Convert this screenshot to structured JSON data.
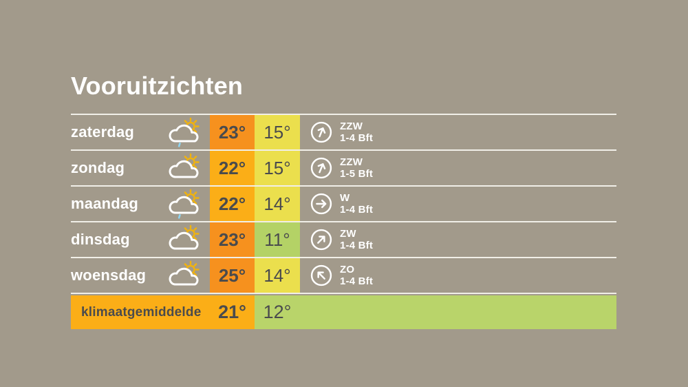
{
  "title": "Vooruitzichten",
  "colors": {
    "background": "#a29a8b",
    "separator_line": "#f1efe8",
    "hot_orange": "#f6911e",
    "warm_amber": "#fbae17",
    "mild_yellow": "#ebdf4d",
    "cool_green": "#b4d266",
    "climate_orange": "#fbae17",
    "climate_green": "#b9d46a",
    "temp_text": "#4a4b4d",
    "white_text": "#ffffff",
    "sun_yellow": "#f2b30c",
    "raindrop_blue": "#8ed4f1"
  },
  "forecast": {
    "rows": [
      {
        "day": "zaterdag",
        "icon": "partly-cloudy-drizzle-icon",
        "max": "23°",
        "min": "15°",
        "max_bg": "#f6911e",
        "min_bg": "#ebdf4d",
        "wind_dir": "ZZW",
        "wind_force": "1-4 Bft",
        "arrow_deg": 22.5
      },
      {
        "day": "zondag",
        "icon": "partly-cloudy-icon",
        "max": "22°",
        "min": "15°",
        "max_bg": "#fbae17",
        "min_bg": "#ebdf4d",
        "wind_dir": "ZZW",
        "wind_force": "1-5 Bft",
        "arrow_deg": 22.5
      },
      {
        "day": "maandag",
        "icon": "partly-cloudy-drizzle-icon",
        "max": "22°",
        "min": "14°",
        "max_bg": "#fbae17",
        "min_bg": "#ebdf4d",
        "wind_dir": "W",
        "wind_force": "1-4 Bft",
        "arrow_deg": 90
      },
      {
        "day": "dinsdag",
        "icon": "partly-cloudy-icon",
        "max": "23°",
        "min": "11°",
        "max_bg": "#f6911e",
        "min_bg": "#b4d266",
        "wind_dir": "ZW",
        "wind_force": "1-4 Bft",
        "arrow_deg": 45
      },
      {
        "day": "woensdag",
        "icon": "partly-cloudy-icon",
        "max": "25°",
        "min": "14°",
        "max_bg": "#f6911e",
        "min_bg": "#ebdf4d",
        "wind_dir": "ZO",
        "wind_force": "1-4 Bft",
        "arrow_deg": -45
      }
    ],
    "climate": {
      "label": "klimaatgemiddelde",
      "max": "21°",
      "min": "12°"
    }
  },
  "chart_data": {
    "type": "table",
    "title": "Vooruitzichten",
    "columns": [
      "day",
      "weather",
      "max_temp_c",
      "min_temp_c",
      "wind_direction",
      "wind_force"
    ],
    "rows": [
      [
        "zaterdag",
        "partly-cloudy-drizzle",
        23,
        15,
        "ZZW",
        "1-4 Bft"
      ],
      [
        "zondag",
        "partly-cloudy",
        22,
        15,
        "ZZW",
        "1-5 Bft"
      ],
      [
        "maandag",
        "partly-cloudy-drizzle",
        22,
        14,
        "W",
        "1-4 Bft"
      ],
      [
        "dinsdag",
        "partly-cloudy",
        23,
        11,
        "ZW",
        "1-4 Bft"
      ],
      [
        "woensdag",
        "partly-cloudy",
        25,
        14,
        "ZO",
        "1-4 Bft"
      ]
    ],
    "climate_average": {
      "label": "klimaatgemiddelde",
      "max_temp_c": 21,
      "min_temp_c": 12
    }
  }
}
